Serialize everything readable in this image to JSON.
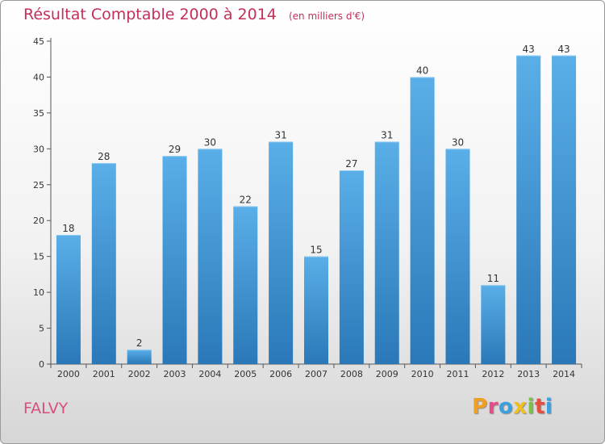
{
  "header": {
    "title": "Résultat Comptable 2000 à 2014",
    "unit": "(en milliers d'€)"
  },
  "footer": {
    "commune": "FALVY",
    "logo_text": "Proxiti"
  },
  "colors": {
    "bar_top": "#5aafe8",
    "bar_bottom": "#2a78b8",
    "title": "#c2305a"
  },
  "chart_data": {
    "type": "bar",
    "title": "Résultat Comptable 2000 à 2014",
    "subtitle": "(en milliers d'€)",
    "xlabel": "",
    "ylabel": "",
    "categories": [
      "2000",
      "2001",
      "2002",
      "2003",
      "2004",
      "2005",
      "2006",
      "2007",
      "2008",
      "2009",
      "2010",
      "2011",
      "2012",
      "2013",
      "2014"
    ],
    "values": [
      18,
      28,
      2,
      29,
      30,
      22,
      31,
      15,
      27,
      31,
      40,
      30,
      11,
      43,
      43
    ],
    "ylim": [
      0,
      45
    ],
    "yticks": [
      0,
      5,
      10,
      15,
      20,
      25,
      30,
      35,
      40,
      45
    ],
    "grid": false,
    "data_labels": true
  }
}
